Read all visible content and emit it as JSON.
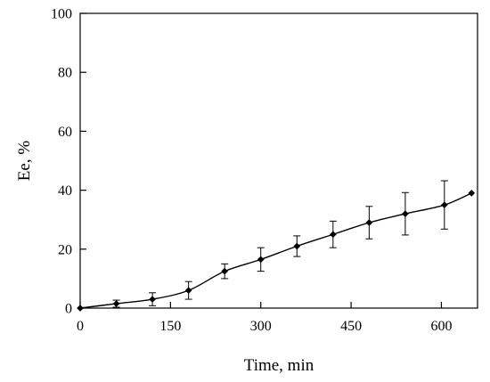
{
  "chart_data": {
    "type": "line",
    "title": "",
    "xlabel": "Time, min",
    "ylabel": "Ee, %",
    "xlim": [
      0,
      660
    ],
    "ylim": [
      0,
      100
    ],
    "xticks": [
      0,
      150,
      300,
      450,
      600
    ],
    "yticks": [
      0,
      20,
      40,
      60,
      80,
      100
    ],
    "xtick_labels": [
      "0",
      "150",
      "300",
      "450",
      "600"
    ],
    "ytick_labels": [
      "0",
      "20",
      "40",
      "60",
      "80",
      "100"
    ],
    "grid": false,
    "legend": "none",
    "marker": "diamond",
    "line_style": "smooth",
    "color": "#000000",
    "series": [
      {
        "x": [
          0,
          60,
          120,
          180,
          240,
          300,
          360,
          420,
          480,
          540,
          605,
          650
        ],
        "y": [
          0,
          1.5,
          3,
          6,
          12.5,
          16.5,
          21,
          25,
          29,
          32,
          35,
          39
        ],
        "error": [
          0,
          1.2,
          2.2,
          3,
          2.5,
          4,
          3.5,
          4.5,
          5.5,
          7.2,
          8.2,
          0
        ]
      }
    ]
  }
}
